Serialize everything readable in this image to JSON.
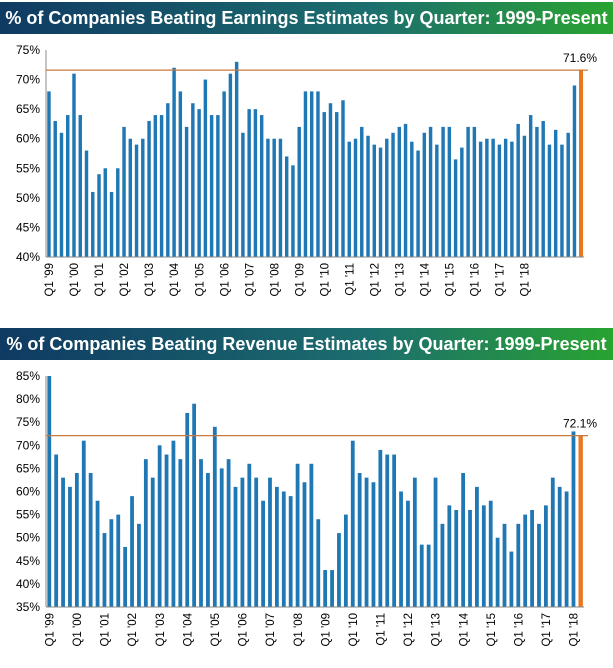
{
  "colors": {
    "bar": "#1f77b4",
    "last_bar": "#e87722",
    "reference_line": "#c8783a",
    "banner_start": "#0f3a63",
    "banner_end": "#29a331"
  },
  "chart_data": [
    {
      "type": "bar",
      "title": "% of Companies Beating Earnings Estimates by Quarter: 1999-Present",
      "ylim": [
        40,
        75
      ],
      "yticks": [
        "40%",
        "45%",
        "50%",
        "55%",
        "60%",
        "65%",
        "70%",
        "75%"
      ],
      "xtick_labels": [
        "Q1 '99",
        "Q1 '00",
        "Q1 '01",
        "Q1 '02",
        "Q1 '03",
        "Q1 '04",
        "Q1 '05",
        "Q1 '06",
        "Q1 '07",
        "Q1 '08",
        "Q1 '09",
        "Q1 '10",
        "Q1 '11",
        "Q1 '12",
        "Q1 '13",
        "Q1 '14",
        "Q1 '15",
        "Q1 '16",
        "Q1 '17",
        "Q1 '18"
      ],
      "values": [
        68,
        63,
        61,
        64,
        71,
        64,
        58,
        51,
        54,
        55,
        51,
        55,
        62,
        60,
        59,
        60,
        63,
        64,
        64,
        66,
        72,
        68,
        62,
        66,
        65,
        70,
        64,
        64,
        68,
        71,
        73,
        61,
        65,
        65,
        64,
        60,
        60,
        60,
        57,
        55.5,
        62,
        68,
        68,
        68,
        64.5,
        66,
        64.5,
        66.5,
        59.5,
        60,
        62,
        60.5,
        59,
        58.5,
        60,
        61,
        62,
        62.5,
        59.5,
        58,
        61,
        62,
        59,
        62,
        62,
        56.5,
        58.5,
        62,
        62,
        59.5,
        60,
        60,
        59,
        60,
        59.5,
        62.5,
        60.5,
        64,
        62,
        63,
        59,
        61.5,
        59,
        61,
        69,
        71.6
      ],
      "highlight_index": 85,
      "reference_value": 71.6,
      "annotation": "71.6%"
    },
    {
      "type": "bar",
      "title": "% of Companies Beating Revenue Estimates by Quarter: 1999-Present",
      "ylim": [
        35,
        85
      ],
      "yticks": [
        "35%",
        "40%",
        "45%",
        "50%",
        "55%",
        "60%",
        "65%",
        "70%",
        "75%",
        "80%",
        "85%"
      ],
      "xtick_labels": [
        "Q1 '99",
        "Q1 '00",
        "Q1 '01",
        "Q1 '02",
        "Q1 '03",
        "Q1 '04",
        "Q1 '05",
        "Q1 '06",
        "Q1 '07",
        "Q1 '08",
        "Q1 '09",
        "Q1 '10",
        "Q1 '11",
        "Q1 '12",
        "Q1 '13",
        "Q1 '14",
        "Q1 '15",
        "Q1 '16",
        "Q1 '17",
        "Q1 '18"
      ],
      "values": [
        85,
        68,
        63,
        61,
        64,
        71,
        64,
        58,
        51,
        54,
        55,
        48,
        59,
        53,
        67,
        63,
        70,
        68,
        71,
        67,
        77,
        79,
        67,
        64,
        74,
        65,
        67,
        61,
        63,
        66,
        63,
        58,
        63,
        61,
        60,
        59,
        66,
        62,
        66,
        54,
        43,
        43,
        51,
        55,
        71,
        64,
        63,
        62,
        69,
        68,
        68,
        60,
        58,
        63,
        48.5,
        48.5,
        63,
        53,
        57,
        56,
        64,
        56,
        61,
        57,
        58,
        50,
        53,
        47,
        53,
        55,
        56,
        53,
        57,
        63,
        61,
        60,
        73,
        72.1
      ],
      "highlight_index": 77,
      "reference_value": 72.1,
      "annotation": "72.1%"
    }
  ]
}
